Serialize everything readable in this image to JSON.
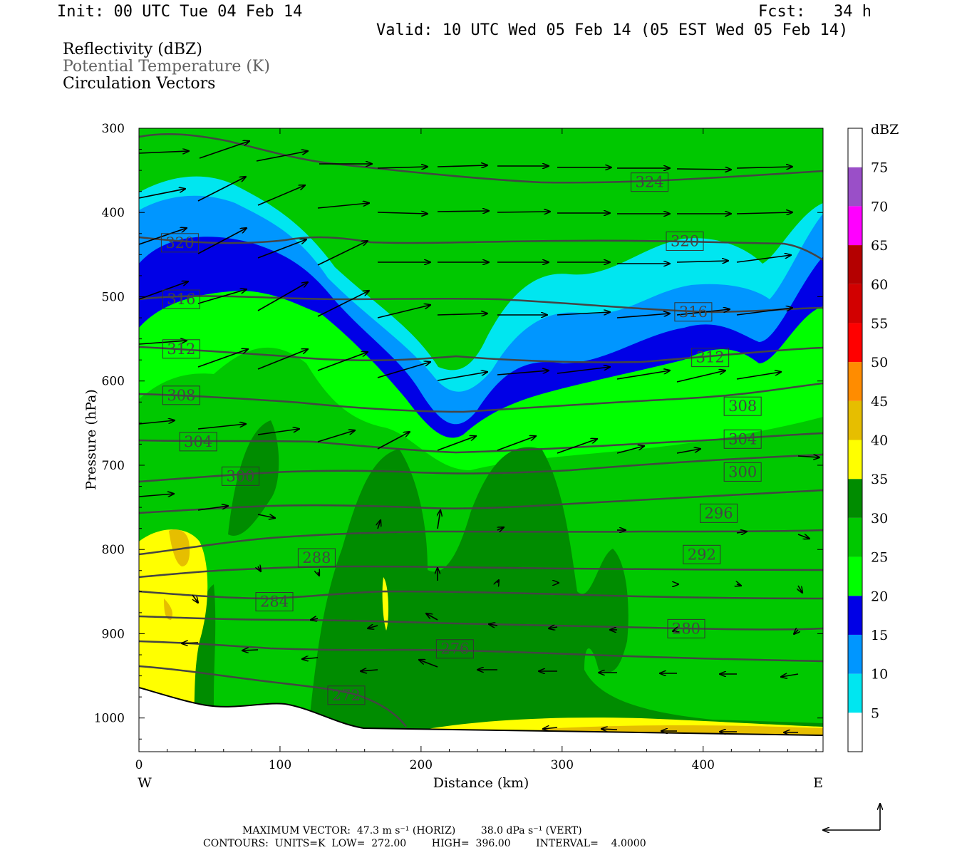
{
  "header": {
    "init": "Init: 00 UTC Tue 04 Feb 14",
    "fcst": "Fcst:   34 h",
    "valid": "Valid: 10 UTC Wed 05 Feb 14 (05 EST Wed 05 Feb 14)"
  },
  "legend": {
    "line1": "Reflectivity (dBZ)",
    "line2": "Potential Temperature (K)",
    "line3": "Circulation Vectors",
    "line2_color": "#606060"
  },
  "footer": {
    "vector": "MAXIMUM VECTOR:  47.3 m s⁻¹ (HORIZ)        38.0 dPa s⁻¹ (VERT)",
    "contours": "CONTOURS:  UNITS=K  LOW=  272.00        HIGH=  396.00        INTERVAL=    4.0000"
  },
  "chart_data": {
    "type": "heatmap",
    "xlabel": "Distance (km)",
    "ylabel": "Pressure (hPa)",
    "xlim": [
      0,
      485
    ],
    "ylim": [
      1040,
      300
    ],
    "x_ticks": [
      "0",
      "100",
      "200",
      "300",
      "400"
    ],
    "y_ticks": [
      "300",
      "400",
      "500",
      "600",
      "700",
      "800",
      "900",
      "1000"
    ],
    "x_end_labels": {
      "left": "W",
      "right": "E"
    },
    "colorbar": {
      "title": "dBZ",
      "levels": [
        "5",
        "10",
        "15",
        "20",
        "25",
        "30",
        "35",
        "40",
        "45",
        "50",
        "55",
        "60",
        "65",
        "70",
        "75"
      ],
      "colors": [
        "#ffffff",
        "#00e6f0",
        "#0096ff",
        "#0000e6",
        "#00ff00",
        "#00c800",
        "#008c00",
        "#ffff00",
        "#e6be00",
        "#ff8c00",
        "#ff0000",
        "#d20000",
        "#b40000",
        "#ff00ff",
        "#9a4fc8"
      ]
    },
    "theta_contours": {
      "units": "K",
      "labels": [
        {
          "value": "324",
          "x": 362,
          "p": 364
        },
        {
          "value": "320",
          "x": 29,
          "p": 436
        },
        {
          "value": "320",
          "x": 387,
          "p": 434
        },
        {
          "value": "316",
          "x": 30,
          "p": 503
        },
        {
          "value": "316",
          "x": 393,
          "p": 518
        },
        {
          "value": "312",
          "x": 30,
          "p": 562
        },
        {
          "value": "312",
          "x": 405,
          "p": 572
        },
        {
          "value": "308",
          "x": 30,
          "p": 617
        },
        {
          "value": "308",
          "x": 428,
          "p": 630
        },
        {
          "value": "304",
          "x": 42,
          "p": 672
        },
        {
          "value": "304",
          "x": 428,
          "p": 669
        },
        {
          "value": "300",
          "x": 72,
          "p": 713
        },
        {
          "value": "300",
          "x": 428,
          "p": 708
        },
        {
          "value": "296",
          "x": 411,
          "p": 757
        },
        {
          "value": "292",
          "x": 399,
          "p": 806
        },
        {
          "value": "288",
          "x": 126,
          "p": 810
        },
        {
          "value": "284",
          "x": 96,
          "p": 862
        },
        {
          "value": "280",
          "x": 388,
          "p": 894
        },
        {
          "value": "276",
          "x": 224,
          "p": 918
        },
        {
          "value": "272",
          "x": 147,
          "p": 973
        }
      ]
    }
  }
}
